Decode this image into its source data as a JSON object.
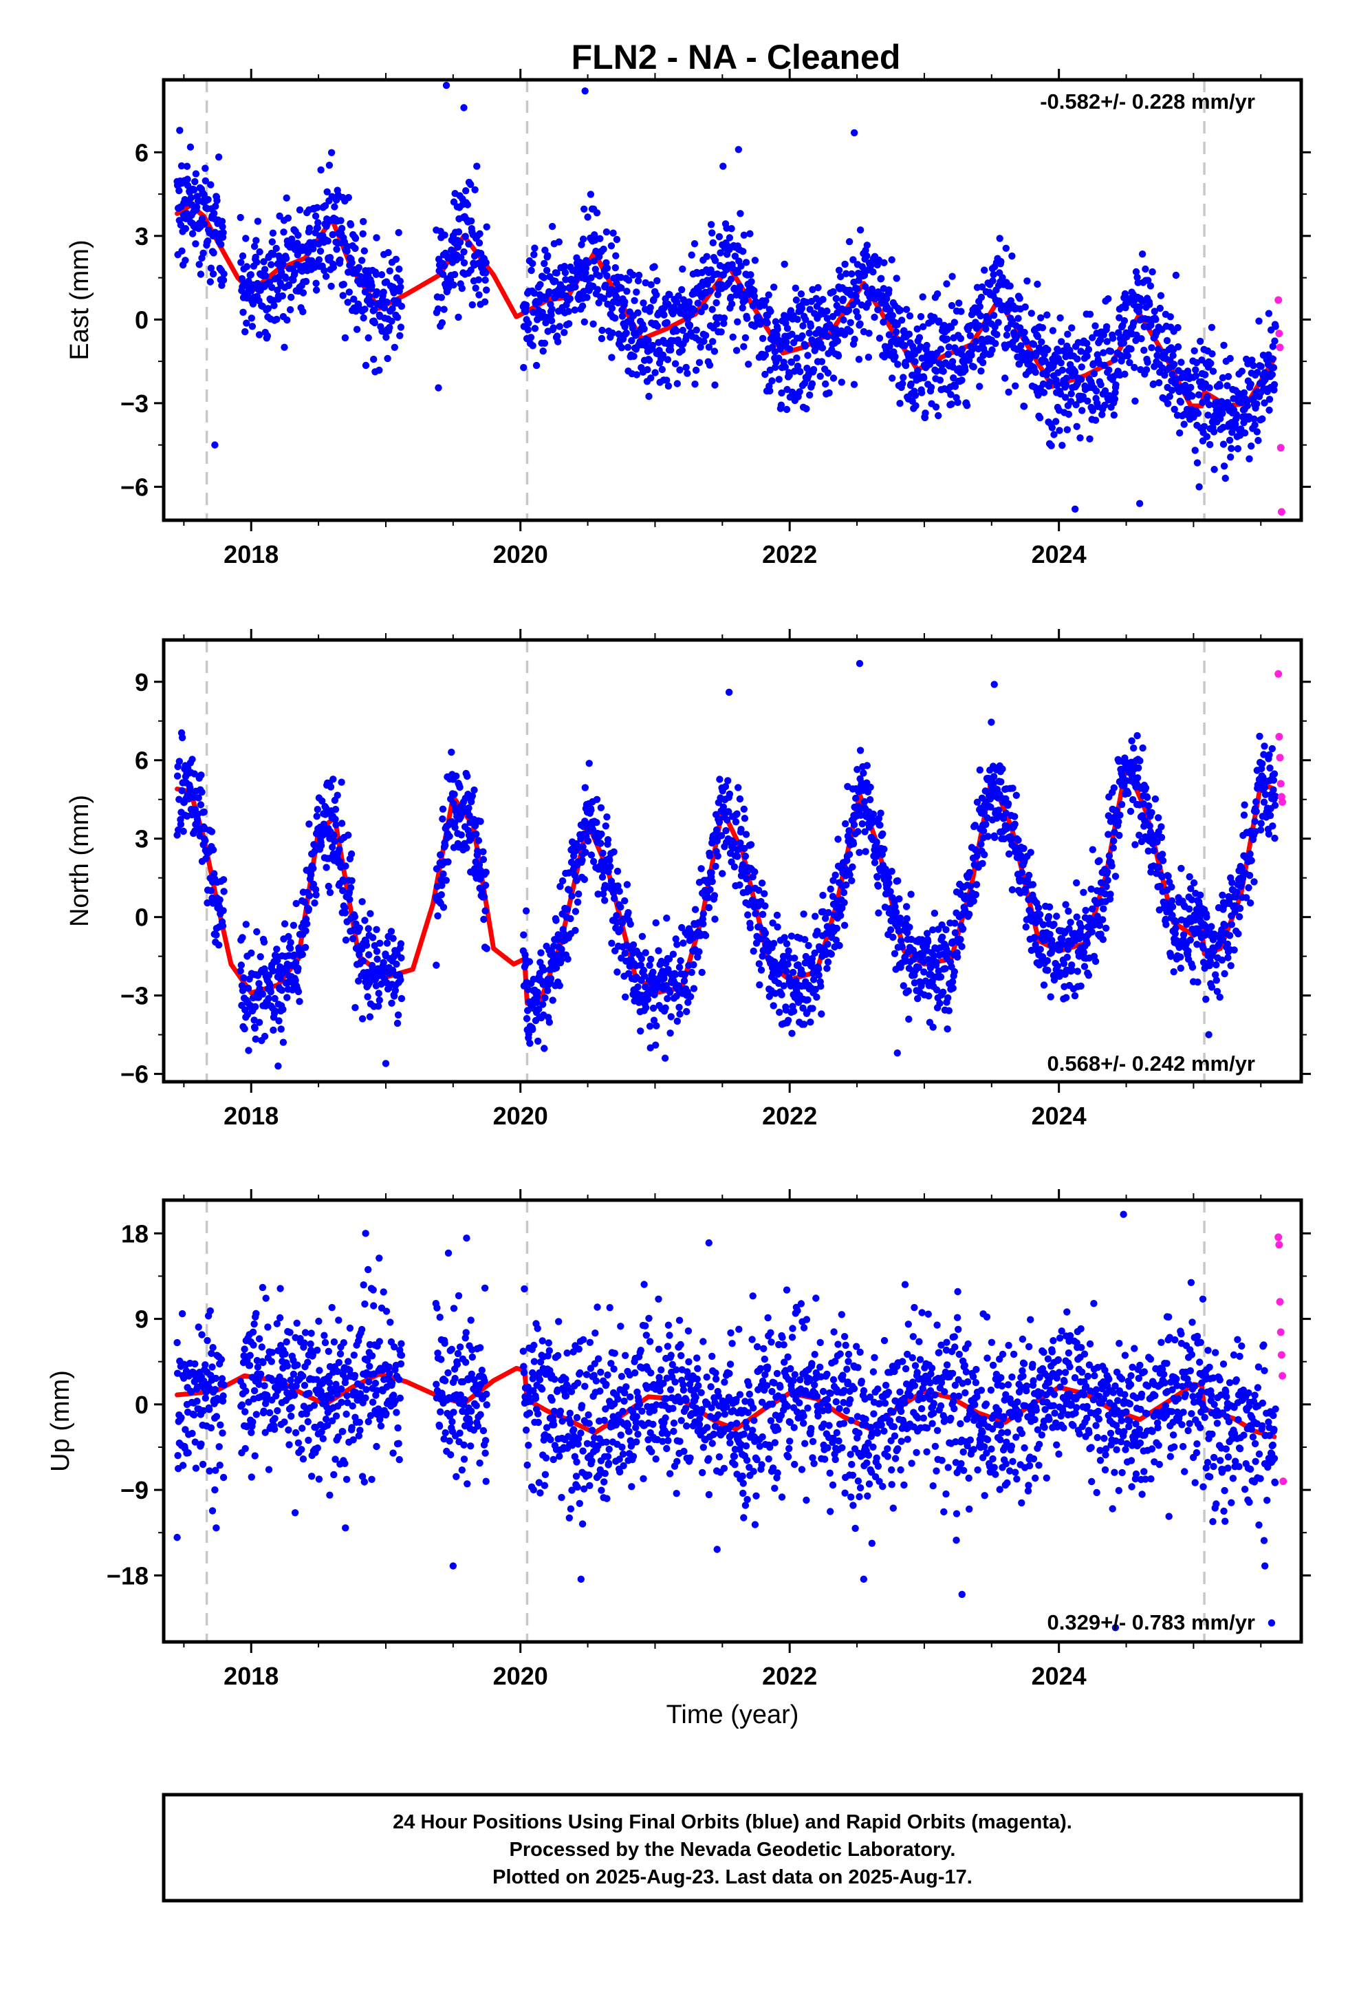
{
  "figure": {
    "title": "FLN2  - NA - Cleaned",
    "footer_lines": [
      "24 Hour Positions Using Final Orbits (blue) and Rapid Orbits (magenta).",
      "Processed by the Nevada Geodetic Laboratory.",
      "Plotted on 2025-Aug-23. Last data on 2025-Aug-17."
    ],
    "colors": {
      "final": "#0000ff",
      "rapid": "#ff22dd",
      "model": "#ff0000",
      "steps": "#c8c8c8",
      "frame": "#000000"
    }
  },
  "chart_data": [
    {
      "type": "scatter",
      "component": "east",
      "ylabel": "East (mm)",
      "xlabel": "",
      "xlim": [
        2017.35,
        2025.8
      ],
      "ylim": [
        -7.2,
        8.6
      ],
      "yticks": [
        -6,
        -3,
        0,
        3,
        6
      ],
      "ytick_labels": [
        "−6",
        "−3",
        "0",
        "3",
        "6"
      ],
      "xticks": [
        2018,
        2020,
        2022,
        2024
      ],
      "xtick_labels": [
        "2018",
        "2020",
        "2022",
        "2024"
      ],
      "rate_text": "-0.582+/- 0.228 mm/yr",
      "rate_position": "top-right",
      "step_lines": [
        2017.67,
        2020.05,
        2025.08
      ],
      "gaps": [
        [
          2017.8,
          2017.92
        ],
        [
          2019.12,
          2019.37
        ],
        [
          2019.75,
          2020.02
        ]
      ],
      "data_start": 2017.45,
      "data_end": 2025.61,
      "rapid_start": 2025.63,
      "trend_rate": -0.582,
      "model_x": [
        2017.45,
        2017.55,
        2017.65,
        2017.75,
        2017.9,
        2018.0,
        2018.2,
        2018.4,
        2018.6,
        2018.75,
        2018.95,
        2019.15,
        2019.4,
        2019.58,
        2019.8,
        2019.97,
        2020.05,
        2020.2,
        2020.35,
        2020.55,
        2020.7,
        2020.9,
        2021.1,
        2021.3,
        2021.55,
        2021.75,
        2021.95,
        2022.1,
        2022.3,
        2022.55,
        2022.75,
        2022.95,
        2023.15,
        2023.35,
        2023.55,
        2023.75,
        2023.95,
        2024.2,
        2024.4,
        2024.6,
        2024.8,
        2024.98,
        2025.06,
        2025.08,
        2025.25,
        2025.4,
        2025.6
      ],
      "model_y": [
        3.8,
        4.1,
        3.7,
        2.8,
        1.5,
        1.0,
        1.8,
        2.2,
        3.6,
        1.8,
        0.4,
        0.9,
        1.6,
        3.0,
        1.6,
        0.1,
        0.3,
        0.7,
        0.8,
        2.4,
        1.0,
        -0.7,
        -0.3,
        0.2,
        1.9,
        0.3,
        -1.2,
        -1.0,
        -0.5,
        1.3,
        -0.3,
        -1.8,
        -1.3,
        -0.9,
        0.7,
        -0.8,
        -2.4,
        -2.0,
        -1.5,
        0.2,
        -1.4,
        -3.1,
        -3.1,
        -2.6,
        -3.1,
        -3.0,
        -1.4
      ],
      "seasonal_amp": 1.1,
      "noise_sd": 1.05,
      "rapid_y": [
        0.7,
        -0.5,
        -1.0,
        -4.6,
        -6.9
      ],
      "outliers": [
        [
          2017.73,
          -4.5
        ],
        [
          2019.58,
          7.6
        ],
        [
          2019.45,
          8.4
        ],
        [
          2020.48,
          8.2
        ],
        [
          2021.62,
          6.1
        ],
        [
          2022.48,
          6.7
        ],
        [
          2024.6,
          -6.6
        ],
        [
          2024.12,
          -6.8
        ]
      ]
    },
    {
      "type": "scatter",
      "component": "north",
      "ylabel": "North (mm)",
      "xlabel": "",
      "xlim": [
        2017.35,
        2025.8
      ],
      "ylim": [
        -6.3,
        10.6
      ],
      "yticks": [
        -6,
        -3,
        0,
        3,
        6,
        9
      ],
      "ytick_labels": [
        "−6",
        "−3",
        "0",
        "3",
        "6",
        "9"
      ],
      "xticks": [
        2018,
        2020,
        2022,
        2024
      ],
      "xtick_labels": [
        "2018",
        "2020",
        "2022",
        "2024"
      ],
      "rate_text": "0.568+/- 0.242 mm/yr",
      "rate_position": "bottom-right",
      "step_lines": [
        2017.67,
        2020.05,
        2025.08
      ],
      "gaps": [
        [
          2017.8,
          2017.92
        ],
        [
          2019.12,
          2019.37
        ],
        [
          2019.75,
          2020.02
        ]
      ],
      "data_start": 2017.45,
      "data_end": 2025.61,
      "rapid_start": 2025.63,
      "trend_rate": 0.568,
      "model_x": [
        2017.45,
        2017.55,
        2017.65,
        2017.75,
        2017.85,
        2018.0,
        2018.2,
        2018.35,
        2018.5,
        2018.62,
        2018.8,
        2019.0,
        2019.2,
        2019.35,
        2019.5,
        2019.65,
        2019.8,
        2019.95,
        2020.03,
        2020.05,
        2020.15,
        2020.3,
        2020.5,
        2020.65,
        2020.85,
        2021.0,
        2021.2,
        2021.35,
        2021.5,
        2021.65,
        2021.85,
        2022.0,
        2022.2,
        2022.35,
        2022.52,
        2022.65,
        2022.85,
        2023.0,
        2023.2,
        2023.35,
        2023.5,
        2023.65,
        2023.85,
        2024.0,
        2024.2,
        2024.35,
        2024.5,
        2024.65,
        2024.85,
        2025.0,
        2025.06,
        2025.08,
        2025.2,
        2025.35,
        2025.5,
        2025.6
      ],
      "model_y": [
        4.9,
        4.8,
        3.0,
        0.5,
        -1.8,
        -2.9,
        -2.6,
        -1.6,
        3.3,
        3.8,
        -1.5,
        -2.3,
        -2.0,
        0.5,
        4.6,
        3.5,
        -1.2,
        -1.8,
        -1.6,
        -3.3,
        -3.2,
        -1.0,
        3.6,
        1.8,
        -2.2,
        -2.9,
        -2.7,
        0.0,
        4.1,
        2.5,
        -1.8,
        -2.4,
        -2.1,
        0.5,
        4.7,
        2.8,
        -1.3,
        -1.8,
        -1.6,
        1.2,
        5.3,
        3.4,
        -0.9,
        -1.3,
        -1.0,
        1.6,
        5.8,
        4.0,
        -0.2,
        -0.7,
        -0.4,
        -1.4,
        -1.2,
        0.8,
        5.1,
        4.9
      ],
      "seasonal_amp": 0.0,
      "noise_sd": 0.95,
      "rapid_y": [
        9.3,
        6.9,
        6.1,
        5.1,
        4.6,
        4.4
      ],
      "outliers": [
        [
          2019.0,
          -5.6
        ],
        [
          2018.2,
          -5.7
        ],
        [
          2021.55,
          8.6
        ],
        [
          2022.52,
          9.7
        ],
        [
          2023.52,
          8.9
        ],
        [
          2022.8,
          -5.2
        ]
      ]
    },
    {
      "type": "scatter",
      "component": "up",
      "ylabel": "Up (mm)",
      "xlabel": "Time (year)",
      "xlim": [
        2017.35,
        2025.8
      ],
      "ylim": [
        -25.0,
        21.5
      ],
      "yticks": [
        -18,
        -9,
        0,
        9,
        18
      ],
      "ytick_labels": [
        "−18",
        "−9",
        "0",
        "9",
        "18"
      ],
      "xticks": [
        2018,
        2020,
        2022,
        2024
      ],
      "xtick_labels": [
        "2018",
        "2020",
        "2022",
        "2024"
      ],
      "rate_text": "0.329+/- 0.783 mm/yr",
      "rate_position": "bottom-right",
      "step_lines": [
        2017.67,
        2020.05,
        2025.08
      ],
      "gaps": [
        [
          2017.8,
          2017.92
        ],
        [
          2019.12,
          2019.37
        ],
        [
          2019.75,
          2020.02
        ]
      ],
      "data_start": 2017.45,
      "data_end": 2025.61,
      "rapid_start": 2025.63,
      "trend_rate": 0.329,
      "model_x": [
        2017.45,
        2017.6,
        2017.75,
        2017.95,
        2018.2,
        2018.4,
        2018.55,
        2018.75,
        2018.95,
        2019.15,
        2019.4,
        2019.58,
        2019.8,
        2019.97,
        2020.03,
        2020.05,
        2020.2,
        2020.35,
        2020.55,
        2020.75,
        2020.95,
        2021.2,
        2021.45,
        2021.6,
        2021.8,
        2022.0,
        2022.2,
        2022.4,
        2022.6,
        2022.8,
        2023.0,
        2023.2,
        2023.4,
        2023.6,
        2023.8,
        2024.0,
        2024.2,
        2024.4,
        2024.6,
        2024.8,
        2025.0,
        2025.06,
        2025.08,
        2025.3,
        2025.45,
        2025.6
      ],
      "model_y": [
        1.0,
        1.2,
        1.5,
        3.0,
        2.5,
        1.0,
        0.0,
        1.8,
        3.2,
        2.4,
        0.8,
        0.1,
        2.5,
        3.8,
        3.6,
        0.5,
        -0.7,
        -1.6,
        -3.0,
        -1.2,
        0.8,
        0.5,
        -1.8,
        -2.6,
        -0.6,
        1.2,
        0.6,
        -1.3,
        -2.6,
        -0.4,
        1.4,
        0.7,
        -0.9,
        -1.9,
        0.0,
        1.8,
        1.1,
        -0.6,
        -1.6,
        0.2,
        2.1,
        2.0,
        -0.5,
        -1.5,
        -2.8,
        -3.4
      ],
      "seasonal_amp": 1.2,
      "noise_sd": 4.2,
      "rapid_y": [
        17.6,
        16.8,
        10.8,
        7.6,
        5.2,
        3.0,
        -8.1
      ],
      "outliers": [
        [
          2017.45,
          -14.0
        ],
        [
          2017.73,
          -9.0
        ],
        [
          2017.74,
          -13.0
        ],
        [
          2018.7,
          -13.0
        ],
        [
          2019.5,
          -17.0
        ],
        [
          2019.6,
          17.5
        ],
        [
          2018.85,
          18.0
        ],
        [
          2021.4,
          17.0
        ],
        [
          2023.28,
          -20.0
        ],
        [
          2024.48,
          20.0
        ],
        [
          2020.45,
          -18.4
        ],
        [
          2022.55,
          -18.4
        ],
        [
          2025.53,
          -17.0
        ],
        [
          2025.58,
          -23.0
        ],
        [
          2024.42,
          -23.5
        ]
      ]
    }
  ]
}
